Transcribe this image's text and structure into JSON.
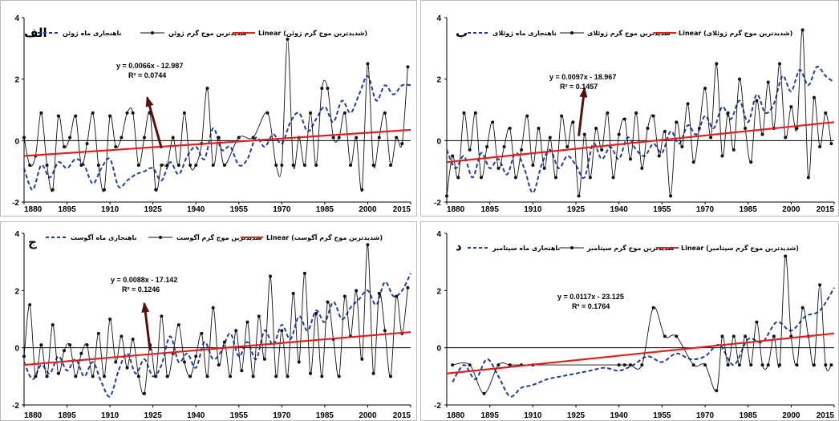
{
  "chart_data": [
    {
      "type": "line",
      "panel_label": "الف",
      "x_ticks": [
        1880,
        1895,
        1910,
        1925,
        1940,
        1955,
        1970,
        1985,
        2000,
        2015
      ],
      "y_ticks": [
        4,
        2,
        0,
        -2
      ],
      "ylim": [
        -2,
        4
      ],
      "xlim": [
        1880,
        2015
      ],
      "legend_items": [
        "شدیدترین موج گرم ژوئن",
        "ناهنجاری ماه ژوئن",
        "Linear (شدیدترین موج گرم ژوئن)"
      ],
      "equation": "y = 0.0066x - 12.987",
      "r_squared": "R² = 0.0744",
      "series": [
        {
          "name": "ناهنجاری ماه ژوئن",
          "color": "#1f3d9a",
          "style": "dashed",
          "x": [
            1880,
            1883,
            1886,
            1889,
            1892,
            1895,
            1898,
            1901,
            1904,
            1907,
            1910,
            1913,
            1916,
            1919,
            1922,
            1925,
            1928,
            1931,
            1934,
            1937,
            1940,
            1943,
            1946,
            1949,
            1952,
            1955,
            1958,
            1961,
            1964,
            1967,
            1970,
            1973,
            1976,
            1979,
            1982,
            1985,
            1988,
            1991,
            1994,
            1997,
            2000,
            2003,
            2006,
            2009,
            2012,
            2015
          ],
          "y": [
            -0.9,
            -1.6,
            -0.8,
            -1.2,
            -0.7,
            -0.9,
            -0.6,
            -0.8,
            -1.4,
            -0.9,
            -0.6,
            -1.5,
            -1.3,
            -1.1,
            -1.0,
            -0.9,
            -1.3,
            -0.7,
            -1.1,
            -0.5,
            -0.2,
            -0.6,
            0.4,
            -0.3,
            -0.2,
            -0.8,
            -0.6,
            0.1,
            -0.2,
            0.2,
            -0.1,
            0.6,
            0.9,
            0.3,
            0.7,
            1.1,
            0.6,
            1.3,
            0.9,
            1.5,
            2.1,
            1.3,
            1.8,
            1.5,
            1.8,
            1.8
          ]
        },
        {
          "name": "شدیدترین موج گرم ژوئن",
          "color": "#111111",
          "style": "solid",
          "x": [
            1880,
            1882,
            1884,
            1886,
            1888,
            1890,
            1892,
            1894,
            1896,
            1898,
            1900,
            1902,
            1904,
            1906,
            1908,
            1910,
            1912,
            1914,
            1916,
            1918,
            1920,
            1922,
            1924,
            1926,
            1928,
            1930,
            1932,
            1934,
            1936,
            1938,
            1940,
            1942,
            1944,
            1946,
            1948,
            1950,
            1955,
            1960,
            1965,
            1968,
            1970,
            1972,
            1974,
            1976,
            1978,
            1980,
            1982,
            1984,
            1986,
            1988,
            1990,
            1992,
            1994,
            1996,
            1998,
            2000,
            2002,
            2004,
            2006,
            2008,
            2010,
            2012,
            2014
          ],
          "y": [
            0.1,
            -0.8,
            -0.5,
            0.9,
            -0.8,
            -1.6,
            0.8,
            -0.2,
            0.1,
            0.8,
            -0.8,
            -0.1,
            0.9,
            -0.8,
            -1.6,
            0.8,
            -0.2,
            0.1,
            0.9,
            0.9,
            -0.8,
            0.1,
            0.9,
            -1.6,
            -0.8,
            -0.8,
            0.1,
            -0.8,
            0.9,
            -0.8,
            -0.8,
            -0.1,
            1.7,
            -0.8,
            0.1,
            -0.8,
            0.1,
            0.1,
            0.9,
            -0.8,
            -0.8,
            3.3,
            -0.8,
            0.1,
            -0.8,
            0.9,
            -0.8,
            1.7,
            1.7,
            0.1,
            0.1,
            0.9,
            -0.8,
            0.1,
            -1.6,
            2.5,
            -0.8,
            0.1,
            0.9,
            -0.8,
            0.1,
            -0.1,
            2.4
          ]
        },
        {
          "name": "Linear (شدیدترین موج گرم ژوئن)",
          "color": "#e02020",
          "style": "trend",
          "y_start": -0.5,
          "y_end": 0.35
        }
      ],
      "arrow": {
        "from_year": 1928,
        "from_y": -0.25,
        "to_year": 1923,
        "to_y": 1.4
      }
    },
    {
      "type": "line",
      "panel_label": "ب",
      "x_ticks": [
        1880,
        1895,
        1910,
        1925,
        1940,
        1955,
        1970,
        1985,
        2000,
        2015
      ],
      "y_ticks": [
        4,
        2,
        0,
        -2
      ],
      "ylim": [
        -2,
        4
      ],
      "xlim": [
        1880,
        2015
      ],
      "legend_items": [
        "شدیدترین موج گرم ژوئلای",
        "ناهنجاری ماه ژوئلای",
        "Linear (شدیدترین موج گرم ژوئلای)"
      ],
      "equation": "y = 0.0097x - 18.967",
      "r_squared": "R² = 0.1457",
      "series": [
        {
          "name": "ناهنجاری ماه ژوئلای",
          "color": "#1f3d9a",
          "style": "dashed",
          "x": [
            1880,
            1883,
            1886,
            1889,
            1892,
            1895,
            1898,
            1901,
            1904,
            1907,
            1910,
            1913,
            1916,
            1919,
            1922,
            1925,
            1928,
            1931,
            1934,
            1937,
            1940,
            1943,
            1946,
            1949,
            1952,
            1955,
            1958,
            1961,
            1964,
            1967,
            1970,
            1973,
            1976,
            1979,
            1982,
            1985,
            1988,
            1991,
            1994,
            1997,
            2000,
            2003,
            2006,
            2009,
            2012,
            2015
          ],
          "y": [
            -0.3,
            -0.9,
            -0.5,
            -1.2,
            -0.4,
            -0.9,
            -0.6,
            -1.1,
            -0.4,
            -0.9,
            -1.7,
            -0.8,
            -0.3,
            -0.9,
            -0.5,
            -0.8,
            -1.2,
            -0.1,
            -0.6,
            -0.2,
            -0.6,
            0.1,
            -0.3,
            -0.5,
            -0.1,
            -0.4,
            0.3,
            -0.1,
            0.5,
            0.2,
            0.8,
            0.4,
            1.1,
            0.7,
            1.3,
            0.6,
            1.5,
            0.9,
            1.2,
            2.1,
            1.6,
            2.3,
            1.8,
            2.4,
            2.1,
            1.9
          ]
        },
        {
          "name": "شدیدترین موج گرم ژوئلای",
          "color": "#111111",
          "style": "solid",
          "x": [
            1880,
            1882,
            1884,
            1886,
            1888,
            1890,
            1892,
            1894,
            1896,
            1898,
            1900,
            1902,
            1904,
            1906,
            1908,
            1910,
            1912,
            1914,
            1916,
            1918,
            1920,
            1922,
            1924,
            1926,
            1928,
            1930,
            1932,
            1934,
            1936,
            1938,
            1940,
            1942,
            1944,
            1946,
            1948,
            1950,
            1952,
            1954,
            1956,
            1958,
            1960,
            1962,
            1964,
            1966,
            1968,
            1970,
            1972,
            1974,
            1976,
            1978,
            1980,
            1982,
            1984,
            1986,
            1988,
            1990,
            1992,
            1994,
            1996,
            1998,
            2000,
            2002,
            2004,
            2006,
            2008,
            2010,
            2012,
            2014
          ],
          "y": [
            -1.8,
            -0.5,
            -1.2,
            0.9,
            -0.3,
            0.9,
            -1.2,
            -0.2,
            0.6,
            -0.9,
            -0.2,
            0.4,
            -1.2,
            -0.3,
            0.8,
            -0.8,
            0.4,
            -0.9,
            0.1,
            -1.2,
            0.8,
            -0.2,
            0.6,
            -1.8,
            0.2,
            -1.2,
            0.4,
            -0.3,
            0.9,
            -1.2,
            0.2,
            0.7,
            -0.6,
            0.9,
            -0.9,
            0.4,
            0.8,
            -0.5,
            0.3,
            -1.8,
            0.6,
            -0.2,
            1.2,
            -0.7,
            0.4,
            1.7,
            0.1,
            2.5,
            -0.5,
            0.9,
            -0.3,
            2.0,
            0.4,
            -0.7,
            1.3,
            0.2,
            1.9,
            0.4,
            2.5,
            0.1,
            1.1,
            0.4,
            3.6,
            -1.2,
            1.4,
            -0.2,
            0.9,
            -0.1
          ]
        },
        {
          "name": "Linear (شدیدترین موج گرم ژوئلای)",
          "color": "#e02020",
          "style": "trend",
          "y_start": -0.7,
          "y_end": 0.6
        }
      ],
      "arrow": {
        "from_year": 1926,
        "from_y": 0.15,
        "to_year": 1928,
        "to_y": 1.7
      }
    },
    {
      "type": "line",
      "panel_label": "ج",
      "x_ticks": [
        1880,
        1895,
        1910,
        1925,
        1940,
        1955,
        1970,
        1985,
        2000,
        2015
      ],
      "y_ticks": [
        4,
        2,
        0,
        -2
      ],
      "ylim": [
        -2,
        4
      ],
      "xlim": [
        1880,
        2015
      ],
      "legend_items": [
        "شدیدترین موج گرم آگوست",
        "ناهنجاری ماه آگوست",
        "Linear (شدیدترین موج گرم آگوست)"
      ],
      "equation": "y = 0.0088x - 17.142",
      "r_squared": "R² = 0.1246",
      "series": [
        {
          "name": "ناهنجاری ماه آگوست",
          "color": "#1f3d9a",
          "style": "dashed",
          "x": [
            1880,
            1883,
            1886,
            1889,
            1892,
            1895,
            1898,
            1901,
            1904,
            1907,
            1910,
            1913,
            1916,
            1919,
            1922,
            1925,
            1928,
            1931,
            1934,
            1937,
            1940,
            1943,
            1946,
            1949,
            1952,
            1955,
            1958,
            1961,
            1964,
            1967,
            1970,
            1973,
            1976,
            1979,
            1982,
            1985,
            1988,
            1991,
            1994,
            1997,
            2000,
            2003,
            2006,
            2009,
            2012,
            2015
          ],
          "y": [
            -0.5,
            -1.1,
            -0.6,
            -0.9,
            -0.3,
            -0.8,
            -0.4,
            -1.0,
            -0.5,
            -1.2,
            -1.7,
            -0.8,
            -0.2,
            -0.9,
            -0.4,
            -1.0,
            -0.6,
            0.4,
            -0.5,
            -0.2,
            -0.7,
            0.2,
            -0.4,
            -0.1,
            0.5,
            -0.3,
            0.2,
            -0.4,
            0.6,
            0.1,
            0.8,
            0.3,
            1.1,
            0.6,
            1.3,
            0.9,
            1.6,
            1.0,
            1.4,
            1.7,
            2.0,
            1.5,
            2.3,
            1.8,
            2.0,
            2.6
          ]
        },
        {
          "name": "شدیدترین موج گرم آگوست",
          "color": "#111111",
          "style": "solid",
          "x": [
            1880,
            1882,
            1884,
            1886,
            1888,
            1890,
            1892,
            1894,
            1896,
            1898,
            1900,
            1902,
            1904,
            1906,
            1908,
            1910,
            1912,
            1914,
            1916,
            1918,
            1920,
            1922,
            1924,
            1926,
            1928,
            1930,
            1932,
            1934,
            1936,
            1938,
            1940,
            1942,
            1944,
            1946,
            1948,
            1950,
            1952,
            1954,
            1956,
            1958,
            1960,
            1962,
            1964,
            1966,
            1968,
            1970,
            1972,
            1974,
            1976,
            1978,
            1980,
            1982,
            1984,
            1986,
            1988,
            1990,
            1992,
            1994,
            1996,
            1998,
            2000,
            2002,
            2004,
            2006,
            2008,
            2010,
            2012,
            2014
          ],
          "y": [
            -0.3,
            1.5,
            -1.0,
            0.1,
            -1.0,
            0.8,
            -0.9,
            -0.1,
            0.1,
            -1.0,
            -0.2,
            0.1,
            -1.0,
            0.5,
            -1.0,
            1.0,
            -0.5,
            0.4,
            -0.7,
            0.3,
            -1.0,
            -1.6,
            0.1,
            -1.0,
            1.1,
            -1.0,
            -0.2,
            0.8,
            -0.5,
            -1.0,
            -0.3,
            0.5,
            -1.0,
            1.4,
            -0.6,
            0.2,
            -1.0,
            0.6,
            -0.8,
            0.9,
            -1.0,
            1.1,
            -0.4,
            2.5,
            -1.0,
            0.6,
            -1.0,
            1.9,
            -0.5,
            2.6,
            -0.9,
            1.2,
            -1.0,
            1.6,
            0.3,
            -1.0,
            1.8,
            0.4,
            2.0,
            -0.4,
            3.6,
            -0.9,
            1.9,
            0.6,
            -1.0,
            1.8,
            0.5,
            2.1
          ]
        },
        {
          "name": "Linear (شدیدترین موج گرم آگوست)",
          "color": "#e02020",
          "style": "trend",
          "y_start": -0.6,
          "y_end": 0.55
        }
      ],
      "arrow": {
        "from_year": 1924,
        "from_y": -0.1,
        "to_year": 1922,
        "to_y": 1.55
      }
    },
    {
      "type": "line",
      "panel_label": "د",
      "x_ticks": [
        1880,
        1895,
        1910,
        1925,
        1940,
        1955,
        1970,
        1985,
        2000,
        2015
      ],
      "y_ticks": [
        4,
        2,
        0,
        -2
      ],
      "ylim": [
        -2,
        4
      ],
      "xlim": [
        1880,
        2015
      ],
      "legend_items": [
        "شدیدترین موج گرم سپتامبر",
        "ناهنجاری ماه سپتامبر",
        "Linear (شدیدترین موج گرم سپتامبر)"
      ],
      "equation": "y = 0.0117x - 23.125",
      "r_squared": "R² = 0.1764",
      "series": [
        {
          "name": "ناهنجاری ماه سپتامبر",
          "color": "#1f3d9a",
          "style": "dashed",
          "x": [
            1882,
            1886,
            1890,
            1894,
            1898,
            1902,
            1906,
            1910,
            1915,
            1920,
            1925,
            1930,
            1935,
            1940,
            1945,
            1950,
            1955,
            1960,
            1965,
            1970,
            1975,
            1980,
            1985,
            1990,
            1995,
            2000,
            2005,
            2010,
            2015
          ],
          "y": [
            -1.2,
            -0.6,
            -1.1,
            -0.4,
            -1.0,
            -1.7,
            -1.4,
            -1.3,
            -1.1,
            -1.0,
            -0.9,
            -0.8,
            -0.7,
            -0.8,
            -0.6,
            -0.3,
            -0.5,
            -0.2,
            -0.4,
            -0.3,
            0.1,
            -0.6,
            0.3,
            0.2,
            0.9,
            0.6,
            1.1,
            1.3,
            2.1
          ]
        },
        {
          "name": "شدیدترین موج گرم سپتامبر",
          "color": "#111111",
          "style": "solid",
          "x": [
            1882,
            1888,
            1893,
            1898,
            1902,
            1906,
            1910,
            1940,
            1942,
            1944,
            1948,
            1952,
            1956,
            1960,
            1966,
            1970,
            1974,
            1976,
            1978,
            1980,
            1982,
            1984,
            1986,
            1988,
            1990,
            1992,
            1994,
            1996,
            1998,
            2000,
            2002,
            2004,
            2006,
            2008,
            2010,
            2012,
            2014
          ],
          "y": [
            -0.6,
            -0.6,
            -1.6,
            -0.6,
            -0.6,
            -0.6,
            -0.6,
            -0.6,
            -0.6,
            -0.6,
            -0.6,
            1.4,
            0.4,
            0.4,
            -0.6,
            -0.6,
            -1.5,
            0.4,
            -0.6,
            0.4,
            -0.6,
            0.4,
            -0.6,
            0.9,
            -0.6,
            -0.6,
            0.4,
            -0.6,
            3.2,
            0.4,
            -0.6,
            1.4,
            0.4,
            -0.6,
            2.2,
            -0.6,
            -0.6
          ]
        },
        {
          "name": "Linear (شدیدترین موج گرم سپتامبر)",
          "color": "#e02020",
          "style": "trend",
          "y_start": -0.9,
          "y_end": 0.5
        }
      ]
    }
  ]
}
